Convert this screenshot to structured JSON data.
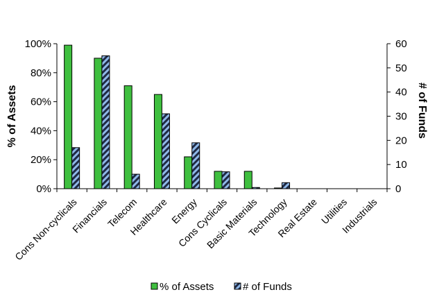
{
  "chart_data": {
    "type": "bar",
    "categories": [
      "Cons Non-cyclicals",
      "Financials",
      "Telecom",
      "Healthcare",
      "Energy",
      "Cons Cyclicals",
      "Basic Materials",
      "Technology",
      "Real Estate",
      "Utilities",
      "Industrials"
    ],
    "series": [
      {
        "name": "% of Assets",
        "axis": "left",
        "color": "#3fbf3f",
        "pattern": "solid",
        "values": [
          0.99,
          0.9,
          0.71,
          0.65,
          0.22,
          0.12,
          0.12,
          0.005,
          0,
          0,
          0
        ]
      },
      {
        "name": "# of Funds",
        "axis": "right",
        "color": "#1f2a44",
        "stripe_color": "#8fb8e8",
        "pattern": "diagonal-stripes",
        "values": [
          17,
          55,
          6,
          31,
          19,
          7,
          0.5,
          2.5,
          0,
          0,
          0
        ]
      }
    ],
    "ylabel_left": "% of Assets",
    "ylabel_right": "# of Funds",
    "ylim_left": [
      0,
      1
    ],
    "yticks_left": [
      "0%",
      "20%",
      "40%",
      "60%",
      "80%",
      "100%"
    ],
    "ylim_right": [
      0,
      60
    ],
    "yticks_right": [
      "0",
      "10",
      "20",
      "30",
      "40",
      "50",
      "60"
    ],
    "grid": false,
    "legend_placement": "bottom"
  }
}
